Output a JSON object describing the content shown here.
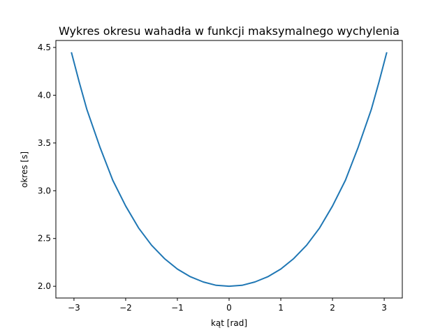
{
  "chart_data": {
    "type": "line",
    "title": "Wykres okresu wahadła w funkcji maksymalnego wychylenia",
    "xlabel": "kąt [rad]",
    "ylabel": "okres [s]",
    "xlim": [
      -3.35,
      3.35
    ],
    "ylim": [
      1.877,
      4.573
    ],
    "grid": false,
    "xticks": [
      -3,
      -2,
      -1,
      0,
      1,
      2,
      3
    ],
    "xtick_labels": [
      "−3",
      "−2",
      "−1",
      "0",
      "1",
      "2",
      "3"
    ],
    "yticks": [
      2.0,
      2.5,
      3.0,
      3.5,
      4.0,
      4.5
    ],
    "ytick_labels": [
      "2.0",
      "2.5",
      "3.0",
      "3.5",
      "4.0",
      "4.5"
    ],
    "series": [
      {
        "color": "#1f77b4",
        "x": [
          -3.05,
          -2.9,
          -2.75,
          -2.5,
          -2.25,
          -2.0,
          -1.75,
          -1.5,
          -1.25,
          -1.0,
          -0.75,
          -0.5,
          -0.25,
          0.0,
          0.25,
          0.5,
          0.75,
          1.0,
          1.25,
          1.5,
          1.75,
          2.0,
          2.25,
          2.5,
          2.75,
          2.9,
          3.05
        ],
        "y": [
          4.45,
          4.14,
          3.85,
          3.46,
          3.11,
          2.84,
          2.61,
          2.43,
          2.29,
          2.18,
          2.1,
          2.045,
          2.01,
          2.0,
          2.01,
          2.045,
          2.1,
          2.18,
          2.29,
          2.43,
          2.61,
          2.84,
          3.11,
          3.46,
          3.85,
          4.14,
          4.45
        ]
      }
    ]
  }
}
